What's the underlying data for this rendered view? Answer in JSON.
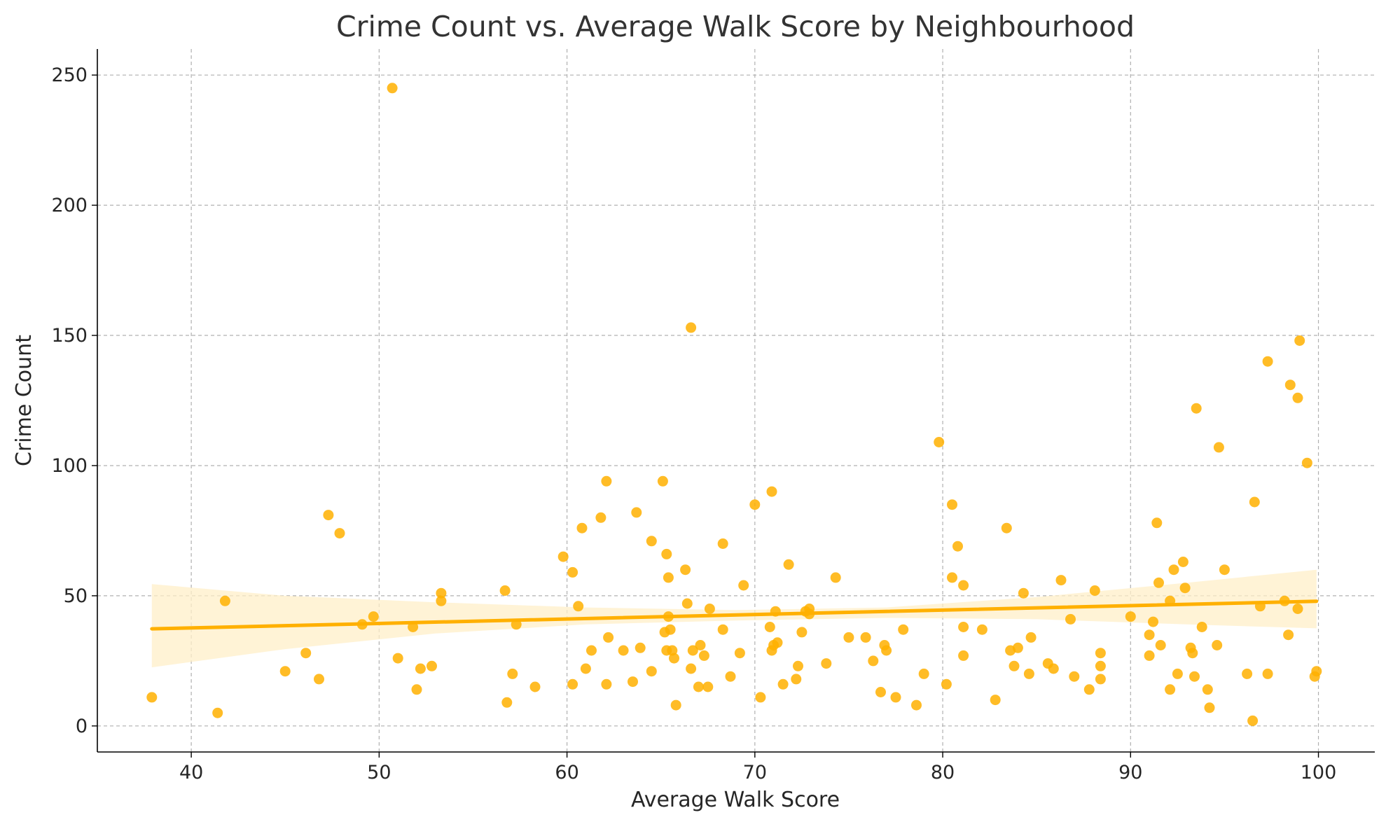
{
  "chart_data": {
    "type": "scatter",
    "title": "Crime Count vs. Average Walk Score by Neighbourhood",
    "xlabel": "Average Walk Score",
    "ylabel": "Crime Count",
    "xlim": [
      35,
      103
    ],
    "ylim": [
      -10,
      260
    ],
    "xticks": [
      40,
      50,
      60,
      70,
      80,
      90,
      100
    ],
    "yticks": [
      0,
      50,
      100,
      150,
      200,
      250
    ],
    "grid": true,
    "colors": {
      "points": "#FFB000",
      "regression_line": "#FFB000",
      "confidence_band": "#FFEFC8"
    },
    "points": [
      [
        37.9,
        11
      ],
      [
        41.4,
        5
      ],
      [
        41.8,
        48
      ],
      [
        45.0,
        21
      ],
      [
        46.1,
        28
      ],
      [
        46.8,
        18
      ],
      [
        47.3,
        81
      ],
      [
        47.9,
        74
      ],
      [
        49.1,
        39
      ],
      [
        49.7,
        42
      ],
      [
        50.7,
        245
      ],
      [
        51.0,
        26
      ],
      [
        51.8,
        38
      ],
      [
        52.0,
        14
      ],
      [
        52.2,
        22
      ],
      [
        52.8,
        23
      ],
      [
        53.3,
        51
      ],
      [
        53.3,
        48
      ],
      [
        56.7,
        52
      ],
      [
        56.8,
        9
      ],
      [
        57.1,
        20
      ],
      [
        57.3,
        39
      ],
      [
        58.3,
        15
      ],
      [
        59.8,
        65
      ],
      [
        60.3,
        16
      ],
      [
        60.3,
        59
      ],
      [
        60.6,
        46
      ],
      [
        60.8,
        76
      ],
      [
        61.0,
        22
      ],
      [
        61.3,
        29
      ],
      [
        61.8,
        80
      ],
      [
        62.1,
        94
      ],
      [
        62.1,
        16
      ],
      [
        62.2,
        34
      ],
      [
        63.0,
        29
      ],
      [
        63.5,
        17
      ],
      [
        63.7,
        82
      ],
      [
        63.9,
        30
      ],
      [
        64.5,
        21
      ],
      [
        64.5,
        71
      ],
      [
        65.1,
        94
      ],
      [
        65.2,
        36
      ],
      [
        65.3,
        66
      ],
      [
        65.3,
        29
      ],
      [
        65.4,
        57
      ],
      [
        65.4,
        42
      ],
      [
        65.5,
        37
      ],
      [
        65.6,
        29
      ],
      [
        65.7,
        26
      ],
      [
        65.8,
        8
      ],
      [
        66.3,
        60
      ],
      [
        66.4,
        47
      ],
      [
        66.6,
        22
      ],
      [
        66.6,
        153
      ],
      [
        66.7,
        29
      ],
      [
        67.0,
        15
      ],
      [
        67.1,
        31
      ],
      [
        67.3,
        27
      ],
      [
        67.5,
        15
      ],
      [
        67.6,
        45
      ],
      [
        68.3,
        37
      ],
      [
        68.3,
        70
      ],
      [
        68.7,
        19
      ],
      [
        69.2,
        28
      ],
      [
        69.4,
        54
      ],
      [
        70.0,
        85
      ],
      [
        70.3,
        11
      ],
      [
        70.8,
        38
      ],
      [
        70.9,
        29
      ],
      [
        70.9,
        90
      ],
      [
        71.0,
        31
      ],
      [
        71.1,
        44
      ],
      [
        71.2,
        32
      ],
      [
        71.5,
        16
      ],
      [
        71.8,
        62
      ],
      [
        72.2,
        18
      ],
      [
        72.3,
        23
      ],
      [
        72.5,
        36
      ],
      [
        72.7,
        44
      ],
      [
        72.9,
        45
      ],
      [
        72.9,
        43
      ],
      [
        73.8,
        24
      ],
      [
        74.3,
        57
      ],
      [
        75.0,
        34
      ],
      [
        75.9,
        34
      ],
      [
        76.3,
        25
      ],
      [
        76.7,
        13
      ],
      [
        76.9,
        31
      ],
      [
        77.0,
        29
      ],
      [
        77.5,
        11
      ],
      [
        77.9,
        37
      ],
      [
        78.6,
        8
      ],
      [
        79.0,
        20
      ],
      [
        79.8,
        109
      ],
      [
        80.2,
        16
      ],
      [
        80.5,
        85
      ],
      [
        80.5,
        57
      ],
      [
        80.8,
        69
      ],
      [
        81.1,
        54
      ],
      [
        81.1,
        38
      ],
      [
        81.1,
        27
      ],
      [
        82.1,
        37
      ],
      [
        82.8,
        10
      ],
      [
        83.4,
        76
      ],
      [
        83.6,
        29
      ],
      [
        83.8,
        23
      ],
      [
        84.0,
        30
      ],
      [
        84.3,
        51
      ],
      [
        84.6,
        20
      ],
      [
        84.7,
        34
      ],
      [
        85.6,
        24
      ],
      [
        85.9,
        22
      ],
      [
        86.3,
        56
      ],
      [
        86.8,
        41
      ],
      [
        87.0,
        19
      ],
      [
        87.8,
        14
      ],
      [
        88.1,
        52
      ],
      [
        88.4,
        28
      ],
      [
        88.4,
        23
      ],
      [
        88.4,
        18
      ],
      [
        90.0,
        42
      ],
      [
        91.0,
        35
      ],
      [
        91.0,
        27
      ],
      [
        91.2,
        40
      ],
      [
        91.4,
        78
      ],
      [
        91.5,
        55
      ],
      [
        91.6,
        31
      ],
      [
        92.1,
        14
      ],
      [
        92.1,
        48
      ],
      [
        92.3,
        60
      ],
      [
        92.5,
        20
      ],
      [
        92.8,
        63
      ],
      [
        92.9,
        53
      ],
      [
        93.2,
        30
      ],
      [
        93.3,
        28
      ],
      [
        93.4,
        19
      ],
      [
        93.5,
        122
      ],
      [
        93.8,
        38
      ],
      [
        94.1,
        14
      ],
      [
        94.2,
        7
      ],
      [
        94.6,
        31
      ],
      [
        94.7,
        107
      ],
      [
        95.0,
        60
      ],
      [
        96.2,
        20
      ],
      [
        96.5,
        2
      ],
      [
        96.6,
        86
      ],
      [
        96.9,
        46
      ],
      [
        97.3,
        140
      ],
      [
        97.3,
        20
      ],
      [
        98.2,
        48
      ],
      [
        98.4,
        35
      ],
      [
        98.5,
        131
      ],
      [
        98.9,
        126
      ],
      [
        98.9,
        45
      ],
      [
        99.0,
        148
      ],
      [
        99.4,
        101
      ],
      [
        99.8,
        19
      ],
      [
        99.9,
        21
      ]
    ],
    "regression": {
      "x": [
        37.9,
        99.9
      ],
      "y": [
        37.3,
        47.9
      ]
    },
    "confidence_band": {
      "x": [
        37.9,
        45,
        53,
        61,
        69,
        77,
        85,
        93,
        99.9
      ],
      "lower": [
        22.5,
        29.5,
        35.5,
        39.0,
        40.5,
        41.5,
        41.0,
        39.0,
        37.5
      ],
      "upper": [
        54.5,
        50.0,
        47.5,
        45.5,
        44.5,
        45.5,
        49.5,
        55.0,
        60.0
      ]
    }
  }
}
